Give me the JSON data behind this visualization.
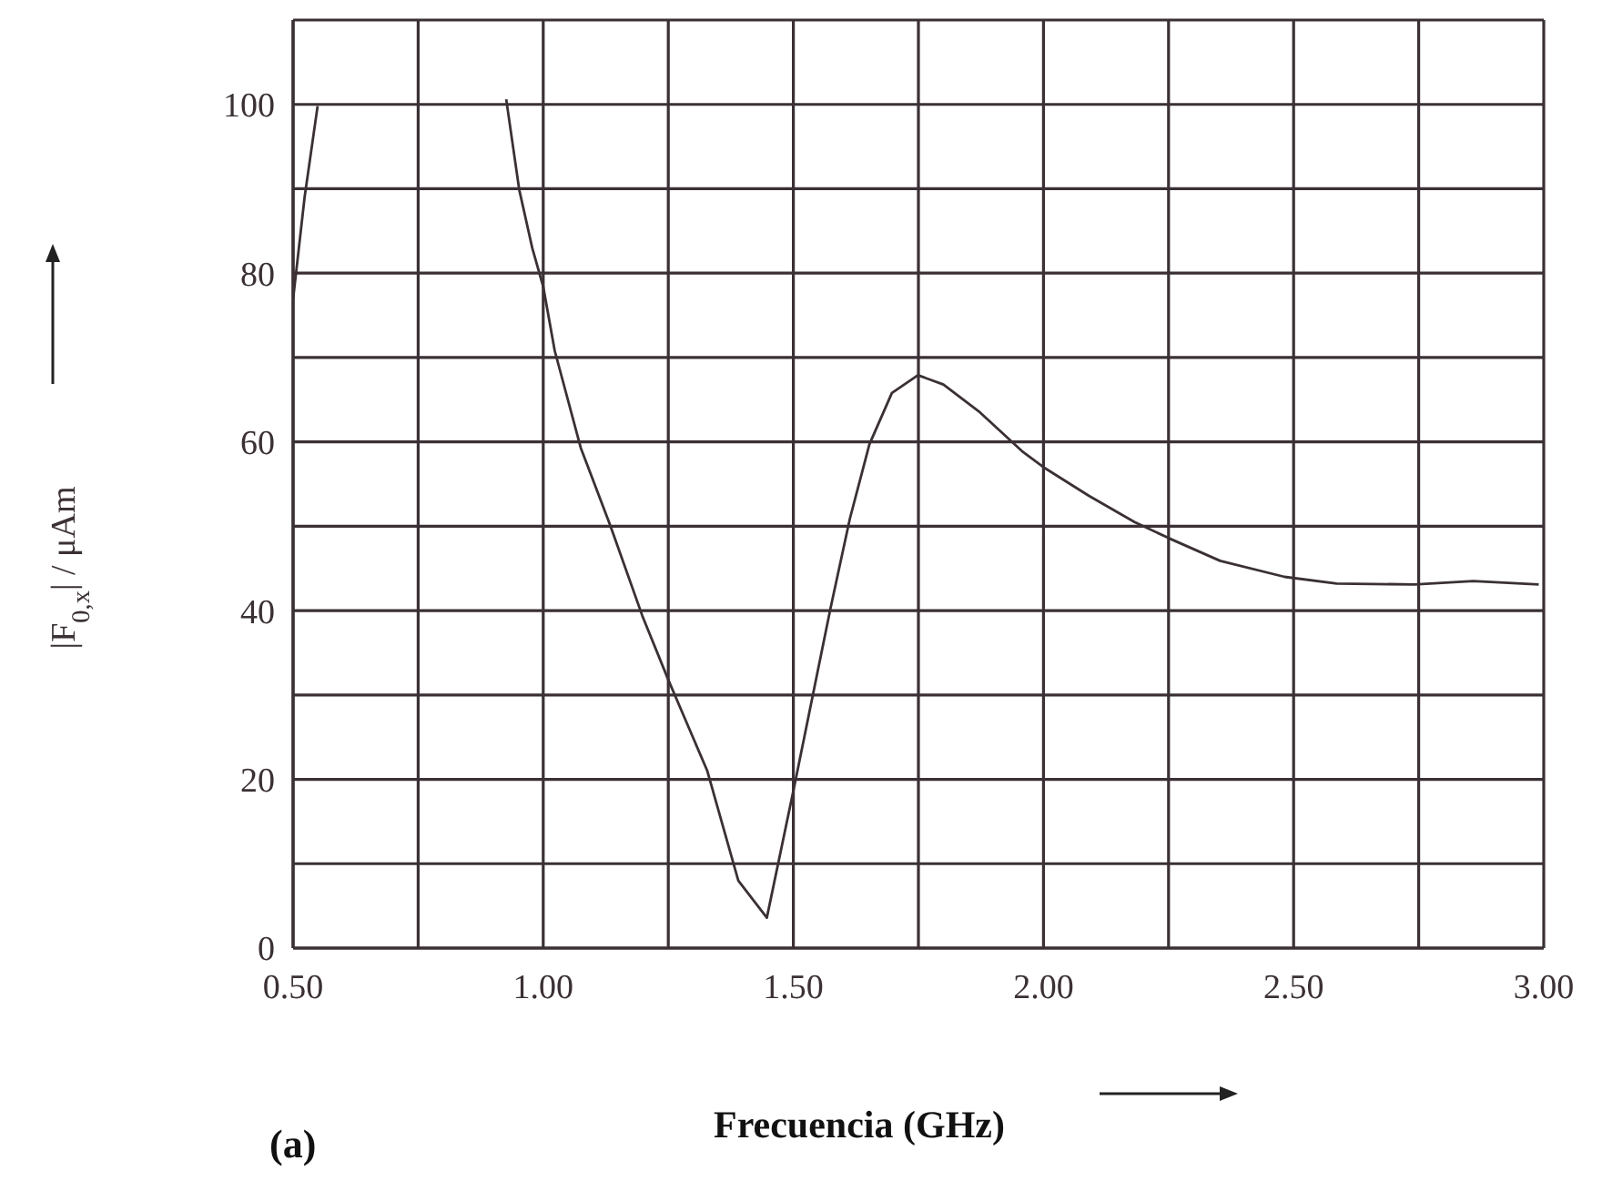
{
  "chart_data": {
    "type": "line",
    "xlabel": "Frecuencia (GHz)",
    "ylabel": "|F$_{0,x}$| / μAm",
    "annotations": [
      "(a)"
    ],
    "x": [
      0.5,
      0.523,
      0.549,
      0.566,
      0.73,
      0.9,
      0.926,
      0.952,
      0.978,
      1.0,
      1.023,
      1.075,
      1.134,
      1.198,
      1.25,
      1.328,
      1.39,
      1.447,
      1.503,
      1.574,
      1.613,
      1.652,
      1.697,
      1.749,
      1.8,
      1.873,
      1.957,
      2.0,
      2.091,
      2.182,
      2.25,
      2.353,
      2.482,
      2.586,
      2.742,
      2.859,
      2.99
    ],
    "series": [
      {
        "color": "#3a3035",
        "values": [
          76.9,
          89,
          99.8,
          null,
          null,
          null,
          100.6,
          89.9,
          83,
          78.4,
          70.8,
          59.3,
          50.1,
          39.4,
          31.8,
          21,
          8,
          3.6,
          19.5,
          40.2,
          50.9,
          59.7,
          65.8,
          67.9,
          66.8,
          63.5,
          58.9,
          57,
          53.6,
          50.5,
          48.6,
          45.9,
          44,
          43.2,
          43.1,
          43.5,
          43.1
        ]
      }
    ],
    "xlim": [
      0.5,
      3.0
    ],
    "ylim": [
      0,
      110
    ],
    "xticks": [
      {
        "value": 0.5,
        "label": "0.50"
      },
      {
        "value": 0.75,
        "label": null
      },
      {
        "value": 1.0,
        "label": "1.00"
      },
      {
        "value": 1.25,
        "label": null
      },
      {
        "value": 1.5,
        "label": "1.50"
      },
      {
        "value": 1.75,
        "label": null
      },
      {
        "value": 2.0,
        "label": "2.00"
      },
      {
        "value": 2.25,
        "label": null
      },
      {
        "value": 2.5,
        "label": "2.50"
      },
      {
        "value": 2.75,
        "label": null
      },
      {
        "value": 3.0,
        "label": "3.00"
      }
    ],
    "yticks": [
      0,
      {
        "value": 10,
        "label": null
      },
      20,
      {
        "value": 30,
        "label": null
      },
      40,
      {
        "value": 50,
        "label": null
      },
      60,
      {
        "value": 70,
        "label": null
      },
      80,
      {
        "value": 90,
        "label": null
      },
      100
    ],
    "grid": true,
    "legend": false,
    "marker": "none",
    "line_style": "solid"
  }
}
